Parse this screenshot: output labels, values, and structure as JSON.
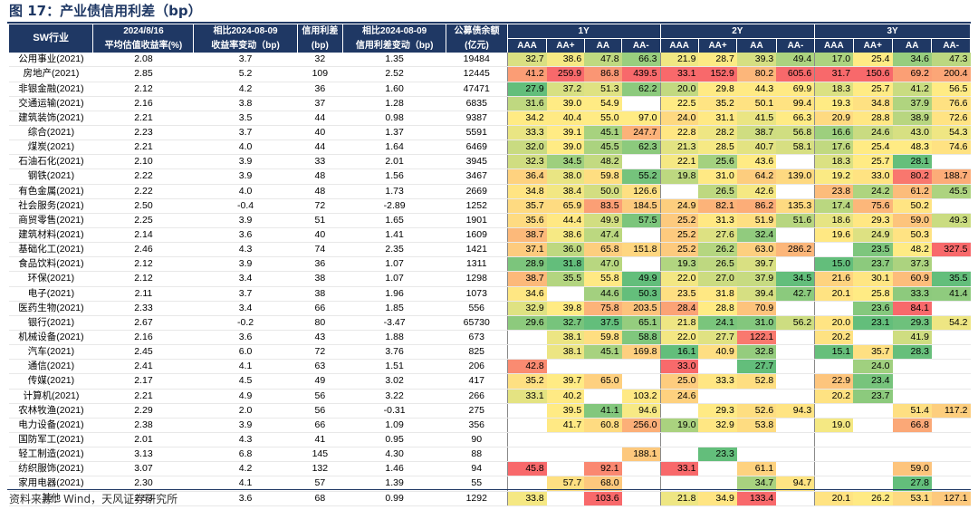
{
  "title": "图 17：产业债信用利差（bp）",
  "source": "资料来源：Wind，天风证券研究所",
  "headers": {
    "industry": "SW行业",
    "yield_top": "2024/8/16",
    "yield_bottom": "平均估值收益率(%)",
    "ychg_top": "相比2024-08-09",
    "ychg_bottom": "收益率变动（bp)",
    "spread_top": "信用利差",
    "spread_bottom": "(bp)",
    "schg_top": "相比2024-08-09",
    "schg_bottom": "信用利差变动（bp)",
    "bal_top": "公募债余额",
    "bal_bottom": "(亿元)",
    "groups": [
      "1Y",
      "2Y",
      "3Y"
    ],
    "ratings": [
      "AAA",
      "AA+",
      "AA",
      "AA-"
    ]
  },
  "colors": {
    "header_bg": "#1f3864",
    "header_text": "#ffffff",
    "title": "#1f3864",
    "scale_low": "#63be7b",
    "scale_mid": "#ffeb84",
    "scale_high": "#f8696b"
  },
  "rows": [
    {
      "ind": "公用事业(2021)",
      "y": "2.08",
      "yc": "3.7",
      "s": "32",
      "sc": "1.35",
      "b": "19484",
      "v": [
        "32.7",
        "38.6",
        "47.8",
        "66.3",
        "21.9",
        "28.7",
        "39.3",
        "49.4",
        "17.0",
        "25.4",
        "34.6",
        "47.3"
      ]
    },
    {
      "ind": "房地产(2021)",
      "y": "2.85",
      "yc": "5.2",
      "s": "109",
      "sc": "2.52",
      "b": "12445",
      "v": [
        "41.2",
        "259.9",
        "86.8",
        "439.5",
        "33.1",
        "152.9",
        "80.2",
        "605.6",
        "31.7",
        "150.6",
        "69.2",
        "200.4"
      ]
    },
    {
      "ind": "非银金融(2021)",
      "y": "2.12",
      "yc": "4.2",
      "s": "36",
      "sc": "1.60",
      "b": "47471",
      "v": [
        "27.9",
        "37.2",
        "51.3",
        "62.2",
        "20.0",
        "29.8",
        "44.3",
        "69.9",
        "18.3",
        "25.7",
        "41.2",
        "56.5"
      ]
    },
    {
      "ind": "交通运输(2021)",
      "y": "2.16",
      "yc": "3.8",
      "s": "37",
      "sc": "1.28",
      "b": "6835",
      "v": [
        "31.6",
        "39.0",
        "54.9",
        "",
        "22.5",
        "35.2",
        "50.1",
        "99.4",
        "19.3",
        "34.8",
        "37.9",
        "76.6"
      ]
    },
    {
      "ind": "建筑装饰(2021)",
      "y": "2.21",
      "yc": "3.5",
      "s": "44",
      "sc": "0.98",
      "b": "9387",
      "v": [
        "34.2",
        "40.4",
        "55.0",
        "97.0",
        "24.0",
        "31.1",
        "41.5",
        "66.3",
        "20.9",
        "28.8",
        "38.9",
        "72.6"
      ]
    },
    {
      "ind": "综合(2021)",
      "y": "2.23",
      "yc": "3.7",
      "s": "40",
      "sc": "1.37",
      "b": "5591",
      "v": [
        "33.3",
        "39.1",
        "45.1",
        "247.7",
        "22.8",
        "28.2",
        "38.7",
        "56.8",
        "16.6",
        "24.6",
        "43.0",
        "54.3"
      ]
    },
    {
      "ind": "煤炭(2021)",
      "y": "2.21",
      "yc": "4.0",
      "s": "44",
      "sc": "1.64",
      "b": "6469",
      "v": [
        "32.0",
        "39.0",
        "45.5",
        "62.3",
        "21.3",
        "28.5",
        "40.7",
        "58.1",
        "17.6",
        "25.4",
        "48.3",
        "74.6"
      ]
    },
    {
      "ind": "石油石化(2021)",
      "y": "2.10",
      "yc": "3.9",
      "s": "33",
      "sc": "2.01",
      "b": "3945",
      "v": [
        "32.3",
        "34.5",
        "48.2",
        "",
        "22.1",
        "25.6",
        "43.6",
        "",
        "18.3",
        "25.7",
        "28.1",
        ""
      ]
    },
    {
      "ind": "钢铁(2021)",
      "y": "2.22",
      "yc": "3.9",
      "s": "48",
      "sc": "1.56",
      "b": "3467",
      "v": [
        "36.4",
        "38.0",
        "59.8",
        "55.2",
        "19.8",
        "31.0",
        "64.2",
        "139.0",
        "19.2",
        "33.0",
        "80.2",
        "188.7"
      ]
    },
    {
      "ind": "有色金属(2021)",
      "y": "2.22",
      "yc": "4.0",
      "s": "48",
      "sc": "1.73",
      "b": "2669",
      "v": [
        "34.8",
        "38.4",
        "50.0",
        "126.6",
        "",
        "26.5",
        "42.6",
        "",
        "23.8",
        "24.2",
        "61.2",
        "45.5"
      ]
    },
    {
      "ind": "社会服务(2021)",
      "y": "2.50",
      "yc": "-0.4",
      "s": "72",
      "sc": "-2.89",
      "b": "1252",
      "v": [
        "35.7",
        "65.9",
        "83.5",
        "184.5",
        "24.9",
        "82.1",
        "86.2",
        "135.3",
        "17.4",
        "75.6",
        "50.2",
        ""
      ]
    },
    {
      "ind": "商贸零售(2021)",
      "y": "2.25",
      "yc": "3.9",
      "s": "51",
      "sc": "1.65",
      "b": "1901",
      "v": [
        "35.6",
        "44.4",
        "49.9",
        "57.5",
        "25.2",
        "31.3",
        "51.9",
        "51.6",
        "18.6",
        "29.3",
        "59.0",
        "49.3"
      ]
    },
    {
      "ind": "建筑材料(2021)",
      "y": "2.14",
      "yc": "3.6",
      "s": "40",
      "sc": "1.41",
      "b": "1609",
      "v": [
        "38.7",
        "38.6",
        "47.4",
        "",
        "25.2",
        "27.6",
        "32.4",
        "",
        "19.6",
        "24.9",
        "50.3",
        ""
      ]
    },
    {
      "ind": "基础化工(2021)",
      "y": "2.46",
      "yc": "4.3",
      "s": "74",
      "sc": "2.35",
      "b": "1421",
      "v": [
        "37.1",
        "36.0",
        "65.8",
        "151.8",
        "25.2",
        "26.2",
        "63.0",
        "286.2",
        "",
        "23.5",
        "48.2",
        "327.5"
      ]
    },
    {
      "ind": "食品饮料(2021)",
      "y": "2.12",
      "yc": "3.9",
      "s": "36",
      "sc": "1.07",
      "b": "1311",
      "v": [
        "28.9",
        "31.8",
        "47.0",
        "",
        "19.3",
        "26.5",
        "39.7",
        "",
        "15.0",
        "23.7",
        "37.3",
        ""
      ]
    },
    {
      "ind": "环保(2021)",
      "y": "2.12",
      "yc": "3.4",
      "s": "38",
      "sc": "1.07",
      "b": "1298",
      "v": [
        "38.7",
        "35.5",
        "55.8",
        "49.9",
        "22.0",
        "27.0",
        "37.9",
        "34.5",
        "21.6",
        "30.1",
        "60.9",
        "35.5"
      ]
    },
    {
      "ind": "电子(2021)",
      "y": "2.11",
      "yc": "3.7",
      "s": "38",
      "sc": "1.96",
      "b": "1073",
      "v": [
        "34.6",
        "",
        "44.6",
        "50.3",
        "23.5",
        "31.8",
        "39.4",
        "42.7",
        "20.1",
        "25.8",
        "33.3",
        "41.4"
      ]
    },
    {
      "ind": "医药生物(2021)",
      "y": "2.33",
      "yc": "3.4",
      "s": "66",
      "sc": "1.85",
      "b": "556",
      "v": [
        "32.9",
        "39.8",
        "75.8",
        "203.5",
        "28.4",
        "28.8",
        "70.9",
        "",
        "",
        "23.6",
        "84.1",
        ""
      ]
    },
    {
      "ind": "银行(2021)",
      "y": "2.67",
      "yc": "-0.2",
      "s": "80",
      "sc": "-3.47",
      "b": "65730",
      "v": [
        "29.6",
        "32.7",
        "37.5",
        "65.1",
        "21.8",
        "24.1",
        "31.0",
        "56.2",
        "20.0",
        "23.1",
        "29.3",
        "54.2"
      ]
    },
    {
      "ind": "机械设备(2021)",
      "y": "2.16",
      "yc": "3.6",
      "s": "43",
      "sc": "1.88",
      "b": "673",
      "v": [
        "",
        "38.1",
        "59.8",
        "58.8",
        "22.0",
        "27.7",
        "122.1",
        "",
        "20.2",
        "",
        "41.9",
        ""
      ]
    },
    {
      "ind": "汽车(2021)",
      "y": "2.45",
      "yc": "6.0",
      "s": "72",
      "sc": "3.76",
      "b": "825",
      "v": [
        "",
        "38.1",
        "45.1",
        "169.8",
        "16.1",
        "40.9",
        "32.8",
        "",
        "15.1",
        "35.7",
        "28.3",
        ""
      ]
    },
    {
      "ind": "通信(2021)",
      "y": "2.41",
      "yc": "4.1",
      "s": "63",
      "sc": "1.51",
      "b": "206",
      "v": [
        "42.8",
        "",
        "",
        "",
        "33.0",
        "",
        "27.7",
        "",
        "",
        "24.0",
        "",
        ""
      ]
    },
    {
      "ind": "传媒(2021)",
      "y": "2.17",
      "yc": "4.5",
      "s": "49",
      "sc": "3.02",
      "b": "417",
      "v": [
        "35.2",
        "39.7",
        "65.0",
        "",
        "25.0",
        "33.3",
        "52.8",
        "",
        "22.9",
        "23.4",
        "",
        ""
      ]
    },
    {
      "ind": "计算机(2021)",
      "y": "2.21",
      "yc": "4.9",
      "s": "56",
      "sc": "3.22",
      "b": "266",
      "v": [
        "33.1",
        "40.2",
        "",
        "103.2",
        "24.6",
        "",
        "",
        "",
        "20.2",
        "23.7",
        "",
        ""
      ]
    },
    {
      "ind": "农林牧渔(2021)",
      "y": "2.29",
      "yc": "2.0",
      "s": "56",
      "sc": "-0.31",
      "b": "275",
      "v": [
        "",
        "39.5",
        "41.1",
        "94.6",
        "",
        "29.3",
        "52.6",
        "94.3",
        "",
        "",
        "51.4",
        "117.2"
      ]
    },
    {
      "ind": "电力设备(2021)",
      "y": "2.38",
      "yc": "3.9",
      "s": "66",
      "sc": "1.09",
      "b": "356",
      "v": [
        "",
        "41.7",
        "60.8",
        "256.0",
        "19.0",
        "32.9",
        "53.8",
        "",
        "19.0",
        "",
        "66.8",
        ""
      ]
    },
    {
      "ind": "国防军工(2021)",
      "y": "2.01",
      "yc": "4.3",
      "s": "41",
      "sc": "0.95",
      "b": "90",
      "v": [
        "",
        "",
        "",
        "",
        "",
        "",
        "",
        "",
        "",
        "",
        "",
        ""
      ]
    },
    {
      "ind": "轻工制造(2021)",
      "y": "3.13",
      "yc": "6.8",
      "s": "145",
      "sc": "4.30",
      "b": "88",
      "v": [
        "",
        "",
        "",
        "188.1",
        "",
        "23.3",
        "",
        "",
        "",
        "",
        "",
        ""
      ]
    },
    {
      "ind": "纺织服饰(2021)",
      "y": "3.07",
      "yc": "4.2",
      "s": "132",
      "sc": "1.46",
      "b": "94",
      "v": [
        "45.8",
        "",
        "92.1",
        "",
        "33.1",
        "",
        "61.1",
        "",
        "",
        "",
        "59.0",
        ""
      ]
    },
    {
      "ind": "家用电器(2021)",
      "y": "2.30",
      "yc": "4.1",
      "s": "57",
      "sc": "1.39",
      "b": "55",
      "v": [
        "",
        "57.7",
        "68.0",
        "",
        "",
        "",
        "34.7",
        "94.7",
        "",
        "",
        "27.8",
        ""
      ]
    },
    {
      "ind": "其他",
      "y": "2.53",
      "yc": "3.6",
      "s": "68",
      "sc": "0.99",
      "b": "1292",
      "v": [
        "33.8",
        "",
        "103.6",
        "",
        "21.8",
        "34.9",
        "133.4",
        "",
        "20.1",
        "26.2",
        "53.1",
        "127.1"
      ]
    }
  ]
}
